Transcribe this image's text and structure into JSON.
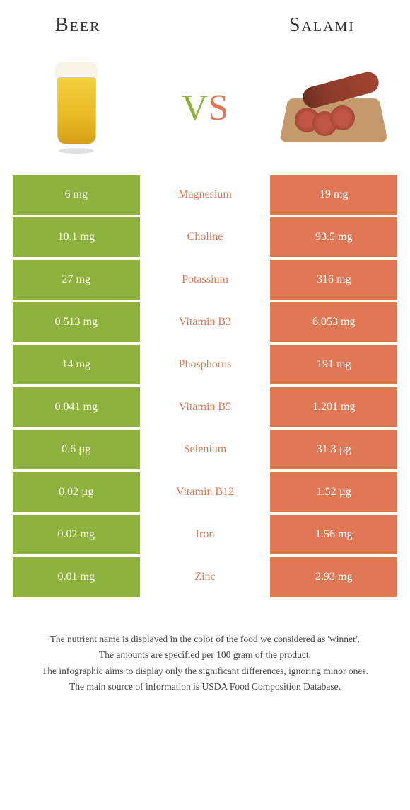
{
  "header": {
    "left_title": "Beer",
    "right_title": "Salami"
  },
  "vs": {
    "v": "V",
    "s": "S"
  },
  "colors": {
    "left": "#8fb13d",
    "right": "#e07856",
    "bg": "#ffffff",
    "text": "#333333"
  },
  "typography": {
    "title_fontsize": 28,
    "cell_fontsize": 16,
    "footer_fontsize": 13.5,
    "vs_fontsize": 52
  },
  "rows": [
    {
      "left": "6 mg",
      "label": "Magnesium",
      "right": "19 mg",
      "winner": "right"
    },
    {
      "left": "10.1 mg",
      "label": "Choline",
      "right": "93.5 mg",
      "winner": "right"
    },
    {
      "left": "27 mg",
      "label": "Potassium",
      "right": "316 mg",
      "winner": "right"
    },
    {
      "left": "0.513 mg",
      "label": "Vitamin B3",
      "right": "6.053 mg",
      "winner": "right"
    },
    {
      "left": "14 mg",
      "label": "Phosphorus",
      "right": "191 mg",
      "winner": "right"
    },
    {
      "left": "0.041 mg",
      "label": "Vitamin B5",
      "right": "1.201 mg",
      "winner": "right"
    },
    {
      "left": "0.6 µg",
      "label": "Selenium",
      "right": "31.3 µg",
      "winner": "right"
    },
    {
      "left": "0.02 µg",
      "label": "Vitamin B12",
      "right": "1.52 µg",
      "winner": "right"
    },
    {
      "left": "0.02 mg",
      "label": "Iron",
      "right": "1.56 mg",
      "winner": "right"
    },
    {
      "left": "0.01 mg",
      "label": "Zinc",
      "right": "2.93 mg",
      "winner": "right"
    }
  ],
  "footer": {
    "line1": "The nutrient name is displayed in the color of the food we considered as 'winner'.",
    "line2": "The amounts are specified per 100 gram of the product.",
    "line3": "The infographic aims to display only the significant differences, ignoring minor ones.",
    "line4": "The main source of information is USDA Food Composition Database."
  }
}
